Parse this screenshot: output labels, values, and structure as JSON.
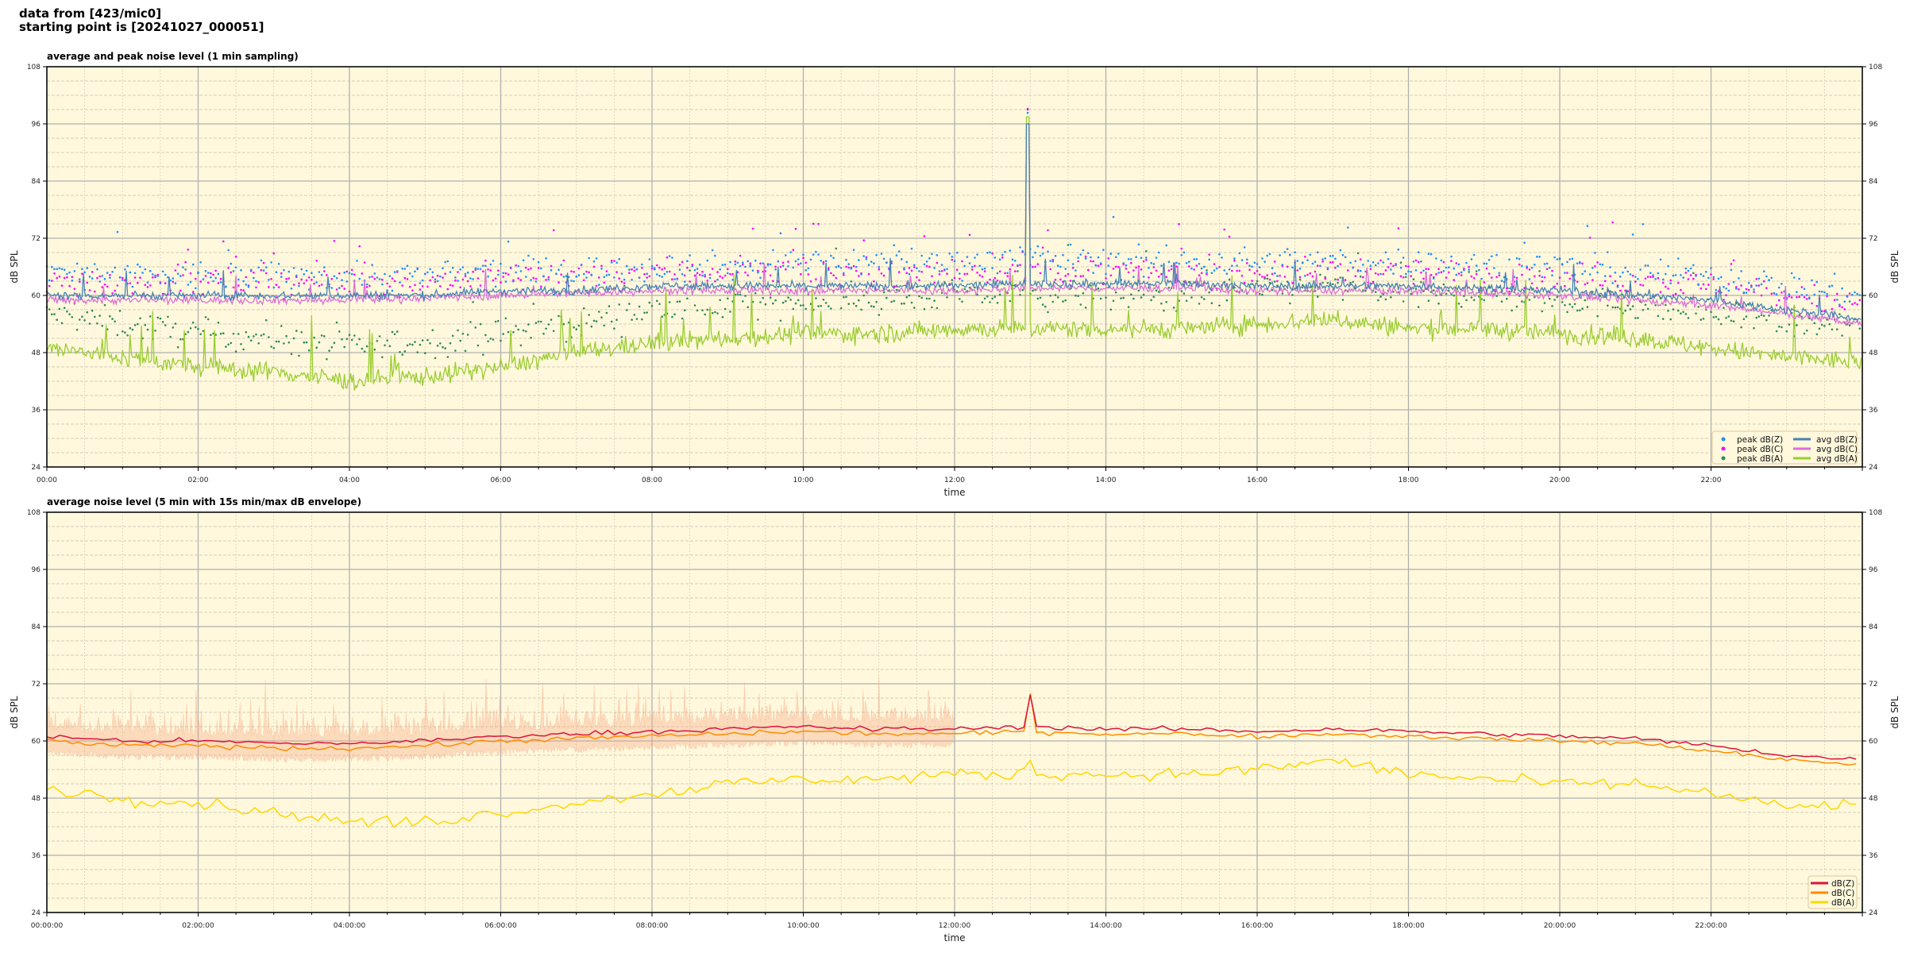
{
  "header": {
    "line1": "data from [423/mic0]",
    "line2": "starting point is [20241027_000051]"
  },
  "colors": {
    "background": "#fff8dc",
    "peakZ": "#1e90ff",
    "peakC": "#ff00ff",
    "peakA": "#2e8b57",
    "avgZ": "#4682b4",
    "avgC": "#da70d6",
    "avgA": "#9acd32",
    "dBZ": "#dc143c",
    "dBC": "#ff8c00",
    "dBA": "#ffd700",
    "envelope": "#f4a582"
  },
  "chart_data": [
    {
      "type": "line",
      "title": "average and peak noise level (1 min sampling)",
      "xlabel": "time",
      "ylabel": "dB SPL",
      "xlim_hours": [
        0,
        24
      ],
      "ylim": [
        24,
        108
      ],
      "yticks": [
        "24",
        "36",
        "48",
        "60",
        "72",
        "84",
        "96",
        "108"
      ],
      "xticks": [
        "00:00",
        "02:00",
        "04:00",
        "06:00",
        "08:00",
        "10:00",
        "12:00",
        "14:00",
        "16:00",
        "18:00",
        "20:00",
        "22:00"
      ],
      "grid": true,
      "legend_position": "lower-right",
      "x_hours": [
        0,
        1,
        2,
        3,
        4,
        5,
        6,
        7,
        8,
        9,
        10,
        11,
        12,
        13,
        14,
        15,
        16,
        17,
        18,
        19,
        20,
        21,
        22,
        23,
        24
      ],
      "series": [
        {
          "name": "avg dB(Z)",
          "values": [
            60,
            60,
            60,
            60,
            60,
            60,
            61,
            61,
            62,
            62,
            62,
            62,
            62,
            62.5,
            62.5,
            62.5,
            62,
            62,
            62,
            61.5,
            61,
            60,
            59,
            57,
            55
          ]
        },
        {
          "name": "avg dB(C)",
          "values": [
            59,
            59,
            59,
            59,
            59,
            59.5,
            60,
            60.5,
            61,
            61,
            61,
            61,
            61,
            61.5,
            61.5,
            61.5,
            61,
            61,
            61,
            60.5,
            60,
            59,
            58,
            56,
            54
          ]
        },
        {
          "name": "avg dB(A)",
          "values": [
            49,
            47,
            45,
            44,
            42,
            43,
            45,
            48,
            50,
            51,
            52,
            52,
            53,
            53,
            53,
            53,
            54,
            55,
            53,
            53,
            52,
            51,
            49,
            47,
            46
          ]
        },
        {
          "name": "peak dB(Z)",
          "values": [
            65,
            64,
            64,
            64,
            64,
            64,
            65,
            65,
            66,
            66,
            67,
            67,
            67,
            68,
            67,
            67,
            67,
            67,
            67,
            66,
            66,
            65,
            64,
            62,
            60
          ]
        },
        {
          "name": "peak dB(C)",
          "values": [
            63,
            63,
            63,
            63,
            63,
            63,
            64,
            64,
            65,
            65,
            65,
            65,
            65,
            66,
            65,
            65,
            65,
            65,
            65,
            64,
            64,
            63,
            62,
            60,
            58
          ]
        },
        {
          "name": "peak dB(A)",
          "values": [
            56,
            54,
            52,
            51,
            49,
            50,
            52,
            54,
            57,
            58,
            59,
            59,
            60,
            60,
            60,
            60,
            61,
            62,
            60,
            60,
            59,
            58,
            56,
            54,
            53
          ]
        }
      ],
      "annotations": {
        "spike_time": "12:58",
        "spike_value": 98
      }
    },
    {
      "type": "line",
      "title": "average noise level (5 min with 15s min/max dB envelope)",
      "xlabel": "time",
      "ylabel": "dB SPL",
      "xlim_hours": [
        0,
        24
      ],
      "ylim": [
        24,
        108
      ],
      "yticks": [
        "24",
        "36",
        "48",
        "60",
        "72",
        "84",
        "96",
        "108"
      ],
      "xticks": [
        "00:00:00",
        "02:00:00",
        "04:00:00",
        "06:00:00",
        "08:00:00",
        "10:00:00",
        "12:00:00",
        "14:00:00",
        "16:00:00",
        "18:00:00",
        "20:00:00",
        "22:00:00"
      ],
      "grid": true,
      "legend_position": "lower-right",
      "x_hours": [
        0,
        1,
        2,
        3,
        4,
        5,
        6,
        7,
        8,
        9,
        10,
        11,
        12,
        13,
        14,
        15,
        16,
        17,
        18,
        19,
        20,
        21,
        22,
        23,
        24
      ],
      "series": [
        {
          "name": "dB(Z)",
          "values": [
            61,
            60,
            60,
            59.5,
            59.5,
            60,
            61,
            61.5,
            62,
            62.5,
            63,
            62.5,
            62.5,
            63,
            62.5,
            62.5,
            62,
            62.5,
            62,
            61.5,
            61,
            60.5,
            59,
            57,
            56
          ]
        },
        {
          "name": "dB(C)",
          "values": [
            60,
            59,
            59,
            58.5,
            58.5,
            59,
            60,
            60.5,
            61,
            61.5,
            62,
            61.5,
            61.5,
            62,
            61.5,
            61.5,
            61,
            61.5,
            61,
            60.5,
            60,
            59.5,
            58,
            56,
            55
          ]
        },
        {
          "name": "dB(A)",
          "values": [
            50,
            48,
            47,
            45,
            43,
            43,
            45,
            47,
            49,
            51,
            52,
            52,
            53,
            53,
            53,
            53,
            54,
            56,
            53,
            52,
            51,
            51,
            49,
            46,
            47
          ]
        }
      ],
      "envelope_max_offset_db": 8,
      "annotations": {
        "spike_time": "13:00",
        "spike_value": 70
      }
    }
  ]
}
